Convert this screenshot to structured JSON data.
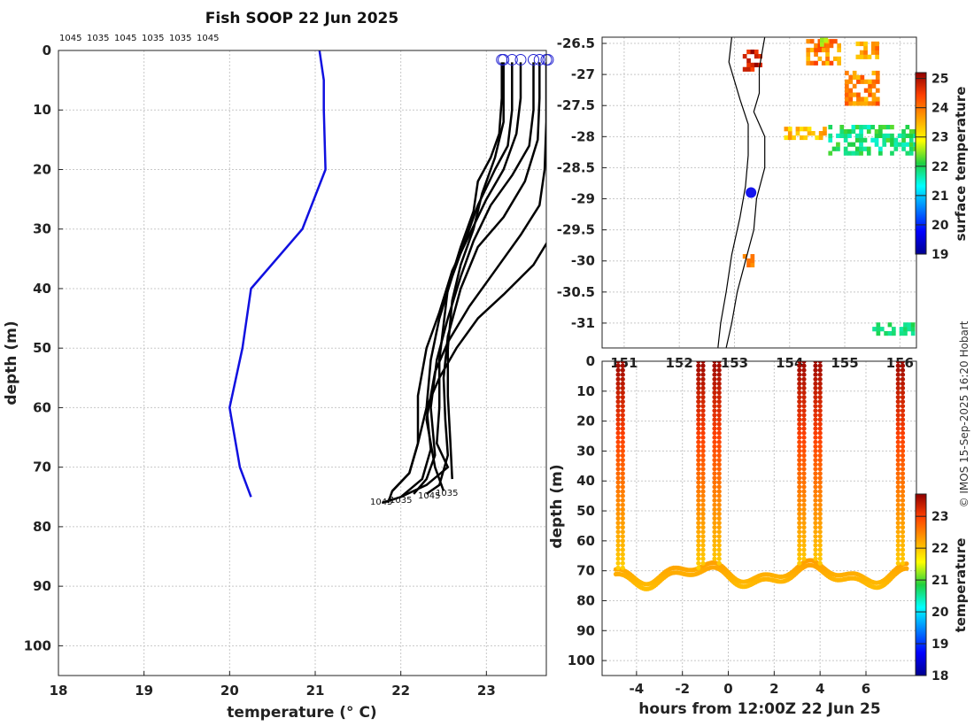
{
  "copyright": "© IMOS 15-Sep-2025 16:20 Hobart",
  "chart_data": [
    {
      "type": "line",
      "title": "Fish SOOP 22 Jun 2025",
      "xlabel": "temperature (° C)",
      "ylabel": "depth (m)",
      "xlim": [
        18,
        23.7
      ],
      "ylim": [
        105,
        0
      ],
      "xticks": [
        "18",
        "19",
        "20",
        "21",
        "22",
        "23"
      ],
      "yticks": [
        "0",
        "10",
        "20",
        "30",
        "40",
        "50",
        "60",
        "70",
        "80",
        "90",
        "100"
      ],
      "top_labels": [
        "1045",
        "1035",
        "1045",
        "1035",
        "1035",
        "1045"
      ],
      "bottom_labels": [
        "1045",
        "1035",
        "1045",
        "1035"
      ],
      "series": [
        {
          "name": "blue profile",
          "color": "#1010e0",
          "points": [
            [
              21.05,
              0
            ],
            [
              21.1,
              5
            ],
            [
              21.1,
              10
            ],
            [
              21.12,
              20
            ],
            [
              20.85,
              30
            ],
            [
              20.25,
              40
            ],
            [
              20.15,
              50
            ],
            [
              20.0,
              60
            ],
            [
              20.12,
              70
            ],
            [
              20.25,
              75
            ]
          ]
        },
        {
          "name": "profile 1",
          "color": "#000000",
          "points": [
            [
              23.18,
              2
            ],
            [
              23.18,
              8
            ],
            [
              23.15,
              14
            ],
            [
              23.05,
              18
            ],
            [
              22.9,
              22
            ],
            [
              22.85,
              27
            ],
            [
              22.7,
              33
            ],
            [
              22.55,
              40
            ],
            [
              22.5,
              46
            ],
            [
              22.45,
              52
            ],
            [
              22.45,
              60
            ],
            [
              22.42,
              66
            ],
            [
              22.55,
              70
            ],
            [
              22.3,
              73
            ],
            [
              22.0,
              75
            ],
            [
              21.78,
              76
            ]
          ]
        },
        {
          "name": "profile 2",
          "color": "#000000",
          "points": [
            [
              23.3,
              2
            ],
            [
              23.3,
              10
            ],
            [
              23.25,
              16
            ],
            [
              23.1,
              20
            ],
            [
              22.9,
              26
            ],
            [
              22.75,
              32
            ],
            [
              22.6,
              38
            ],
            [
              22.45,
              45
            ],
            [
              22.35,
              52
            ],
            [
              22.3,
              60
            ],
            [
              22.35,
              67
            ],
            [
              22.25,
              72
            ],
            [
              22.0,
              75
            ]
          ]
        },
        {
          "name": "profile 3",
          "color": "#000000",
          "points": [
            [
              23.4,
              2
            ],
            [
              23.4,
              8
            ],
            [
              23.35,
              14
            ],
            [
              23.2,
              20
            ],
            [
              23.0,
              25
            ],
            [
              22.8,
              31
            ],
            [
              22.6,
              37
            ],
            [
              22.45,
              44
            ],
            [
              22.3,
              50
            ],
            [
              22.2,
              58
            ],
            [
              22.2,
              66
            ],
            [
              22.1,
              71
            ],
            [
              21.9,
              74
            ],
            [
              21.85,
              76
            ]
          ]
        },
        {
          "name": "profile 4",
          "color": "#000000",
          "points": [
            [
              23.55,
              2
            ],
            [
              23.55,
              10
            ],
            [
              23.5,
              16
            ],
            [
              23.3,
              21
            ],
            [
              23.05,
              26
            ],
            [
              22.85,
              32
            ],
            [
              22.7,
              38
            ],
            [
              22.55,
              45
            ],
            [
              22.42,
              52
            ],
            [
              22.35,
              60
            ],
            [
              22.4,
              68
            ],
            [
              22.3,
              72
            ],
            [
              22.15,
              74.5
            ]
          ]
        },
        {
          "name": "profile 5",
          "color": "#000000",
          "points": [
            [
              23.62,
              2
            ],
            [
              23.62,
              8
            ],
            [
              23.6,
              15
            ],
            [
              23.45,
              22
            ],
            [
              23.2,
              28
            ],
            [
              22.9,
              33
            ],
            [
              22.7,
              40
            ],
            [
              22.55,
              48
            ],
            [
              22.5,
              55
            ],
            [
              22.52,
              62
            ],
            [
              22.55,
              68
            ],
            [
              22.45,
              73
            ],
            [
              22.3,
              74.5
            ]
          ]
        },
        {
          "name": "profile 6",
          "color": "#000000",
          "points": [
            [
              23.7,
              2
            ],
            [
              23.7,
              12
            ],
            [
              23.68,
              20
            ],
            [
              23.62,
              26
            ],
            [
              23.4,
              31
            ],
            [
              23.1,
              37
            ],
            [
              22.8,
              43
            ],
            [
              22.55,
              49
            ],
            [
              22.4,
              54
            ],
            [
              22.3,
              62
            ],
            [
              22.4,
              70
            ],
            [
              22.5,
              74
            ]
          ]
        },
        {
          "name": "profile 7",
          "color": "#000000",
          "points": [
            [
              23.72,
              2
            ],
            [
              23.72,
              15
            ],
            [
              23.72,
              28
            ],
            [
              23.72,
              32
            ],
            [
              23.55,
              36
            ],
            [
              23.2,
              41
            ],
            [
              22.9,
              45
            ],
            [
              22.65,
              50
            ],
            [
              22.45,
              55
            ],
            [
              22.3,
              60
            ],
            [
              22.2,
              66
            ],
            [
              22.1,
              71
            ],
            [
              21.9,
              74
            ]
          ]
        },
        {
          "name": "profile 8",
          "color": "#000000",
          "points": [
            [
              23.2,
              2
            ],
            [
              23.2,
              12
            ],
            [
              23.1,
              18
            ],
            [
              22.95,
              24
            ],
            [
              22.85,
              30
            ],
            [
              22.7,
              36
            ],
            [
              22.6,
              42
            ],
            [
              22.55,
              50
            ],
            [
              22.55,
              58
            ],
            [
              22.58,
              66
            ],
            [
              22.6,
              72
            ]
          ]
        }
      ]
    },
    {
      "type": "heatmap",
      "title": "",
      "xlabel": "",
      "ylabel": "",
      "xlim": [
        150.6,
        156.3
      ],
      "ylim": [
        -31.4,
        -26.4
      ],
      "xticks": [
        "151",
        "152",
        "153",
        "154",
        "155",
        "156"
      ],
      "yticks": [
        "-26.5",
        "-27",
        "-27.5",
        "-28",
        "-28.5",
        "-29",
        "-29.5",
        "-30",
        "-30.5",
        "-31"
      ],
      "colorbar_label": "surface temperature",
      "colorbar_ticks": [
        "19",
        "20",
        "21",
        "22",
        "23",
        "24",
        "25"
      ],
      "colorbar_range": [
        19,
        25.2
      ],
      "marker": {
        "lon": 153.3,
        "lat": -28.9,
        "color": "#1515ee"
      }
    },
    {
      "type": "scatter",
      "title": "",
      "xlabel": "hours from 12:00Z 22 Jun 25",
      "ylabel": "depth (m)",
      "xlim": [
        -5.5,
        8.2
      ],
      "ylim": [
        105,
        0
      ],
      "xticks": [
        "-4",
        "-2",
        "0",
        "2",
        "4",
        "6"
      ],
      "yticks": [
        "0",
        "10",
        "20",
        "30",
        "40",
        "50",
        "60",
        "70",
        "80",
        "90",
        "100"
      ],
      "colorbar_label": "temperature",
      "colorbar_ticks": [
        "18",
        "19",
        "20",
        "21",
        "22",
        "23"
      ],
      "colorbar_range": [
        18,
        23.7
      ],
      "profile_times": [
        -4.8,
        -4.6,
        -1.3,
        -1.1,
        -0.6,
        -0.4,
        3.1,
        3.3,
        3.8,
        4.0,
        7.4,
        7.6
      ]
    }
  ]
}
